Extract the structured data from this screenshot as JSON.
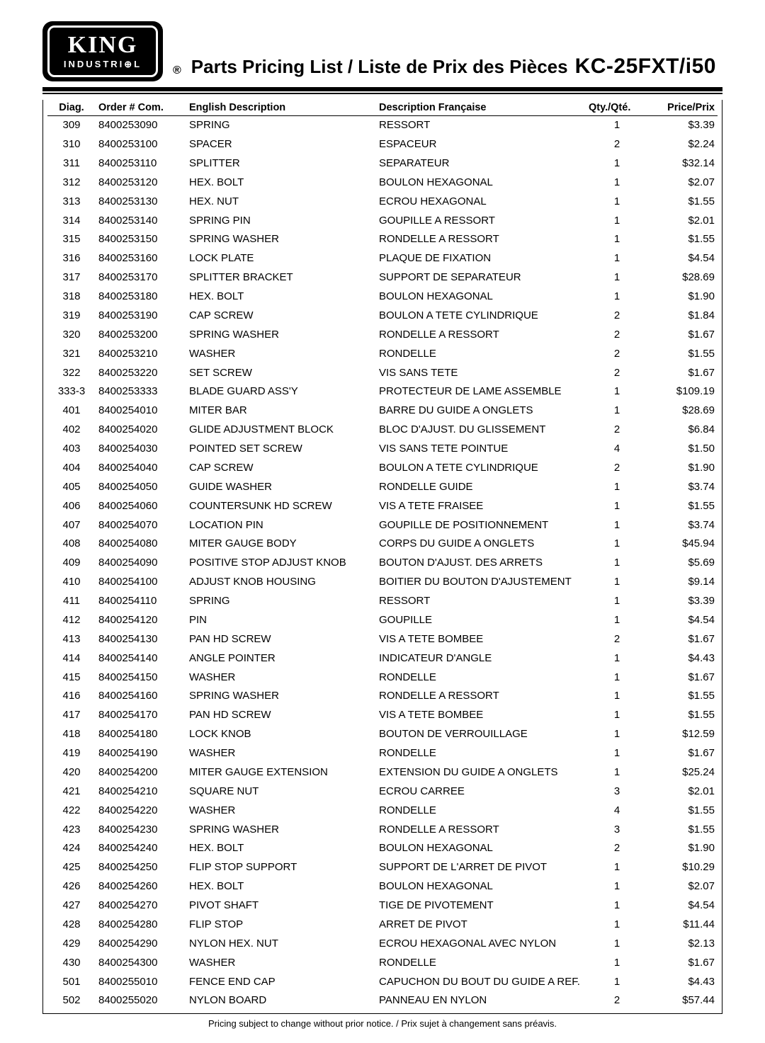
{
  "logo": {
    "line1": "KING",
    "line2": "INDUSTRI⊕L"
  },
  "registered": "®",
  "title": "Parts Pricing List / Liste de Prix des Pièces",
  "model": "KC-25FXT/i50",
  "headers": {
    "diag": "Diag.",
    "order": "Order # Com.",
    "eng": "English Description",
    "fr": "Description Française",
    "qty": "Qty./Qté.",
    "price": "Price/Prix"
  },
  "footnote": "Pricing subject to change without prior notice. / Prix sujet à changement sans préavis.",
  "rows": [
    {
      "diag": "309",
      "order": "8400253090",
      "eng": "SPRING",
      "fr": "RESSORT",
      "qty": "1",
      "price": "$3.39"
    },
    {
      "diag": "310",
      "order": "8400253100",
      "eng": "SPACER",
      "fr": "ESPACEUR",
      "qty": "2",
      "price": "$2.24"
    },
    {
      "diag": "311",
      "order": "8400253110",
      "eng": "SPLITTER",
      "fr": "SEPARATEUR",
      "qty": "1",
      "price": "$32.14"
    },
    {
      "diag": "312",
      "order": "8400253120",
      "eng": "HEX. BOLT",
      "fr": "BOULON HEXAGONAL",
      "qty": "1",
      "price": "$2.07"
    },
    {
      "diag": "313",
      "order": "8400253130",
      "eng": "HEX. NUT",
      "fr": "ECROU HEXAGONAL",
      "qty": "1",
      "price": "$1.55"
    },
    {
      "diag": "314",
      "order": "8400253140",
      "eng": "SPRING PIN",
      "fr": "GOUPILLE A RESSORT",
      "qty": "1",
      "price": "$2.01"
    },
    {
      "diag": "315",
      "order": "8400253150",
      "eng": "SPRING WASHER",
      "fr": "RONDELLE A RESSORT",
      "qty": "1",
      "price": "$1.55"
    },
    {
      "diag": "316",
      "order": "8400253160",
      "eng": "LOCK PLATE",
      "fr": "PLAQUE DE FIXATION",
      "qty": "1",
      "price": "$4.54"
    },
    {
      "diag": "317",
      "order": "8400253170",
      "eng": "SPLITTER BRACKET",
      "fr": "SUPPORT DE SEPARATEUR",
      "qty": "1",
      "price": "$28.69"
    },
    {
      "diag": "318",
      "order": "8400253180",
      "eng": "HEX. BOLT",
      "fr": "BOULON HEXAGONAL",
      "qty": "1",
      "price": "$1.90"
    },
    {
      "diag": "319",
      "order": "8400253190",
      "eng": "CAP SCREW",
      "fr": "BOULON A TETE CYLINDRIQUE",
      "qty": "2",
      "price": "$1.84"
    },
    {
      "diag": "320",
      "order": "8400253200",
      "eng": "SPRING WASHER",
      "fr": "RONDELLE A RESSORT",
      "qty": "2",
      "price": "$1.67"
    },
    {
      "diag": "321",
      "order": "8400253210",
      "eng": "WASHER",
      "fr": "RONDELLE",
      "qty": "2",
      "price": "$1.55"
    },
    {
      "diag": "322",
      "order": "8400253220",
      "eng": "SET SCREW",
      "fr": "VIS SANS TETE",
      "qty": "2",
      "price": "$1.67"
    },
    {
      "diag": "333-3",
      "order": "8400253333",
      "eng": "BLADE GUARD ASS'Y",
      "fr": "PROTECTEUR DE LAME ASSEMBLE",
      "qty": "1",
      "price": "$109.19"
    },
    {
      "diag": "401",
      "order": "8400254010",
      "eng": "MITER BAR",
      "fr": "BARRE DU GUIDE A ONGLETS",
      "qty": "1",
      "price": "$28.69"
    },
    {
      "diag": "402",
      "order": "8400254020",
      "eng": "GLIDE ADJUSTMENT BLOCK",
      "fr": "BLOC D'AJUST. DU GLISSEMENT",
      "qty": "2",
      "price": "$6.84"
    },
    {
      "diag": "403",
      "order": "8400254030",
      "eng": "POINTED SET SCREW",
      "fr": "VIS SANS TETE POINTUE",
      "qty": "4",
      "price": "$1.50"
    },
    {
      "diag": "404",
      "order": "8400254040",
      "eng": "CAP SCREW",
      "fr": "BOULON A TETE CYLINDRIQUE",
      "qty": "2",
      "price": "$1.90"
    },
    {
      "diag": "405",
      "order": "8400254050",
      "eng": "GUIDE WASHER",
      "fr": "RONDELLE GUIDE",
      "qty": "1",
      "price": "$3.74"
    },
    {
      "diag": "406",
      "order": "8400254060",
      "eng": "COUNTERSUNK HD SCREW",
      "fr": "VIS A TETE FRAISEE",
      "qty": "1",
      "price": "$1.55"
    },
    {
      "diag": "407",
      "order": "8400254070",
      "eng": "LOCATION PIN",
      "fr": "GOUPILLE DE POSITIONNEMENT",
      "qty": "1",
      "price": "$3.74"
    },
    {
      "diag": "408",
      "order": "8400254080",
      "eng": "MITER GAUGE BODY",
      "fr": "CORPS DU GUIDE A ONGLETS",
      "qty": "1",
      "price": "$45.94"
    },
    {
      "diag": "409",
      "order": "8400254090",
      "eng": "POSITIVE STOP ADJUST KNOB",
      "fr": "BOUTON D'AJUST. DES ARRETS",
      "qty": "1",
      "price": "$5.69"
    },
    {
      "diag": "410",
      "order": "8400254100",
      "eng": "ADJUST KNOB HOUSING",
      "fr": "BOITIER DU BOUTON D'AJUSTEMENT",
      "qty": "1",
      "price": "$9.14"
    },
    {
      "diag": "411",
      "order": "8400254110",
      "eng": "SPRING",
      "fr": "RESSORT",
      "qty": "1",
      "price": "$3.39"
    },
    {
      "diag": "412",
      "order": "8400254120",
      "eng": "PIN",
      "fr": "GOUPILLE",
      "qty": "1",
      "price": "$4.54"
    },
    {
      "diag": "413",
      "order": "8400254130",
      "eng": "PAN HD SCREW",
      "fr": "VIS A TETE BOMBEE",
      "qty": "2",
      "price": "$1.67"
    },
    {
      "diag": "414",
      "order": "8400254140",
      "eng": "ANGLE POINTER",
      "fr": "INDICATEUR D'ANGLE",
      "qty": "1",
      "price": "$4.43"
    },
    {
      "diag": "415",
      "order": "8400254150",
      "eng": "WASHER",
      "fr": "RONDELLE",
      "qty": "1",
      "price": "$1.67"
    },
    {
      "diag": "416",
      "order": "8400254160",
      "eng": "SPRING WASHER",
      "fr": "RONDELLE A RESSORT",
      "qty": "1",
      "price": "$1.55"
    },
    {
      "diag": "417",
      "order": "8400254170",
      "eng": "PAN HD SCREW",
      "fr": "VIS A TETE BOMBEE",
      "qty": "1",
      "price": "$1.55"
    },
    {
      "diag": "418",
      "order": "8400254180",
      "eng": "LOCK KNOB",
      "fr": "BOUTON DE VERROUILLAGE",
      "qty": "1",
      "price": "$12.59"
    },
    {
      "diag": "419",
      "order": "8400254190",
      "eng": "WASHER",
      "fr": "RONDELLE",
      "qty": "1",
      "price": "$1.67"
    },
    {
      "diag": "420",
      "order": "8400254200",
      "eng": "MITER GAUGE EXTENSION",
      "fr": "EXTENSION DU GUIDE A ONGLETS",
      "qty": "1",
      "price": "$25.24"
    },
    {
      "diag": "421",
      "order": "8400254210",
      "eng": "SQUARE NUT",
      "fr": "ECROU CARREE",
      "qty": "3",
      "price": "$2.01"
    },
    {
      "diag": "422",
      "order": "8400254220",
      "eng": "WASHER",
      "fr": "RONDELLE",
      "qty": "4",
      "price": "$1.55"
    },
    {
      "diag": "423",
      "order": "8400254230",
      "eng": "SPRING WASHER",
      "fr": "RONDELLE A RESSORT",
      "qty": "3",
      "price": "$1.55"
    },
    {
      "diag": "424",
      "order": "8400254240",
      "eng": "HEX. BOLT",
      "fr": "BOULON HEXAGONAL",
      "qty": "2",
      "price": "$1.90"
    },
    {
      "diag": "425",
      "order": "8400254250",
      "eng": "FLIP STOP SUPPORT",
      "fr": "SUPPORT DE L'ARRET DE PIVOT",
      "qty": "1",
      "price": "$10.29"
    },
    {
      "diag": "426",
      "order": "8400254260",
      "eng": "HEX. BOLT",
      "fr": "BOULON HEXAGONAL",
      "qty": "1",
      "price": "$2.07"
    },
    {
      "diag": "427",
      "order": "8400254270",
      "eng": "PIVOT SHAFT",
      "fr": "TIGE DE PIVOTEMENT",
      "qty": "1",
      "price": "$4.54"
    },
    {
      "diag": "428",
      "order": "8400254280",
      "eng": "FLIP STOP",
      "fr": "ARRET DE PIVOT",
      "qty": "1",
      "price": "$11.44"
    },
    {
      "diag": "429",
      "order": "8400254290",
      "eng": "NYLON HEX. NUT",
      "fr": "ECROU HEXAGONAL AVEC NYLON",
      "qty": "1",
      "price": "$2.13"
    },
    {
      "diag": "430",
      "order": "8400254300",
      "eng": "WASHER",
      "fr": "RONDELLE",
      "qty": "1",
      "price": "$1.67"
    },
    {
      "diag": "501",
      "order": "8400255010",
      "eng": "FENCE END CAP",
      "fr": "CAPUCHON DU BOUT DU GUIDE A REF.",
      "qty": "1",
      "price": "$4.43"
    },
    {
      "diag": "502",
      "order": "8400255020",
      "eng": "NYLON BOARD",
      "fr": "PANNEAU EN NYLON",
      "qty": "2",
      "price": "$57.44"
    }
  ]
}
